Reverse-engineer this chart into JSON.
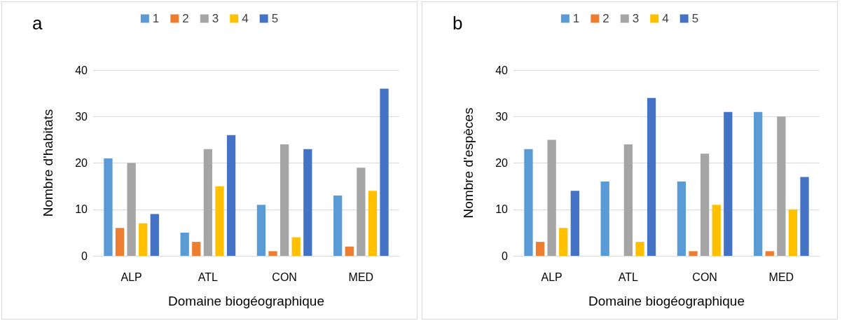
{
  "chart_data": [
    {
      "type": "bar",
      "title": "a",
      "xlabel": "Domaine biogéographique",
      "ylabel": "Nombre d'habitats",
      "categories": [
        "ALP",
        "ATL",
        "CON",
        "MED"
      ],
      "series": [
        {
          "name": "1",
          "color": "#5b9bd5",
          "values": [
            21,
            5,
            11,
            13
          ]
        },
        {
          "name": "2",
          "color": "#ed7d31",
          "values": [
            6,
            3,
            1,
            2
          ]
        },
        {
          "name": "3",
          "color": "#a5a5a5",
          "values": [
            20,
            23,
            24,
            19
          ]
        },
        {
          "name": "4",
          "color": "#ffc000",
          "values": [
            7,
            15,
            4,
            14
          ]
        },
        {
          "name": "5",
          "color": "#4472c4",
          "values": [
            9,
            26,
            23,
            36
          ]
        }
      ],
      "ylim": [
        0,
        40
      ],
      "yticks": [
        0,
        10,
        20,
        30,
        40
      ],
      "grid": "y",
      "legend": "top"
    },
    {
      "type": "bar",
      "title": "b",
      "xlabel": "Domaine biogéographique",
      "ylabel": "Nombre d'espèces",
      "categories": [
        "ALP",
        "ATL",
        "CON",
        "MED"
      ],
      "series": [
        {
          "name": "1",
          "color": "#5b9bd5",
          "values": [
            23,
            16,
            16,
            31
          ]
        },
        {
          "name": "2",
          "color": "#ed7d31",
          "values": [
            3,
            0,
            1,
            1
          ]
        },
        {
          "name": "3",
          "color": "#a5a5a5",
          "values": [
            25,
            24,
            22,
            30
          ]
        },
        {
          "name": "4",
          "color": "#ffc000",
          "values": [
            6,
            3,
            11,
            10
          ]
        },
        {
          "name": "5",
          "color": "#4472c4",
          "values": [
            14,
            34,
            31,
            17
          ]
        }
      ],
      "ylim": [
        0,
        40
      ],
      "yticks": [
        0,
        10,
        20,
        30,
        40
      ],
      "grid": "y",
      "legend": "top"
    }
  ]
}
